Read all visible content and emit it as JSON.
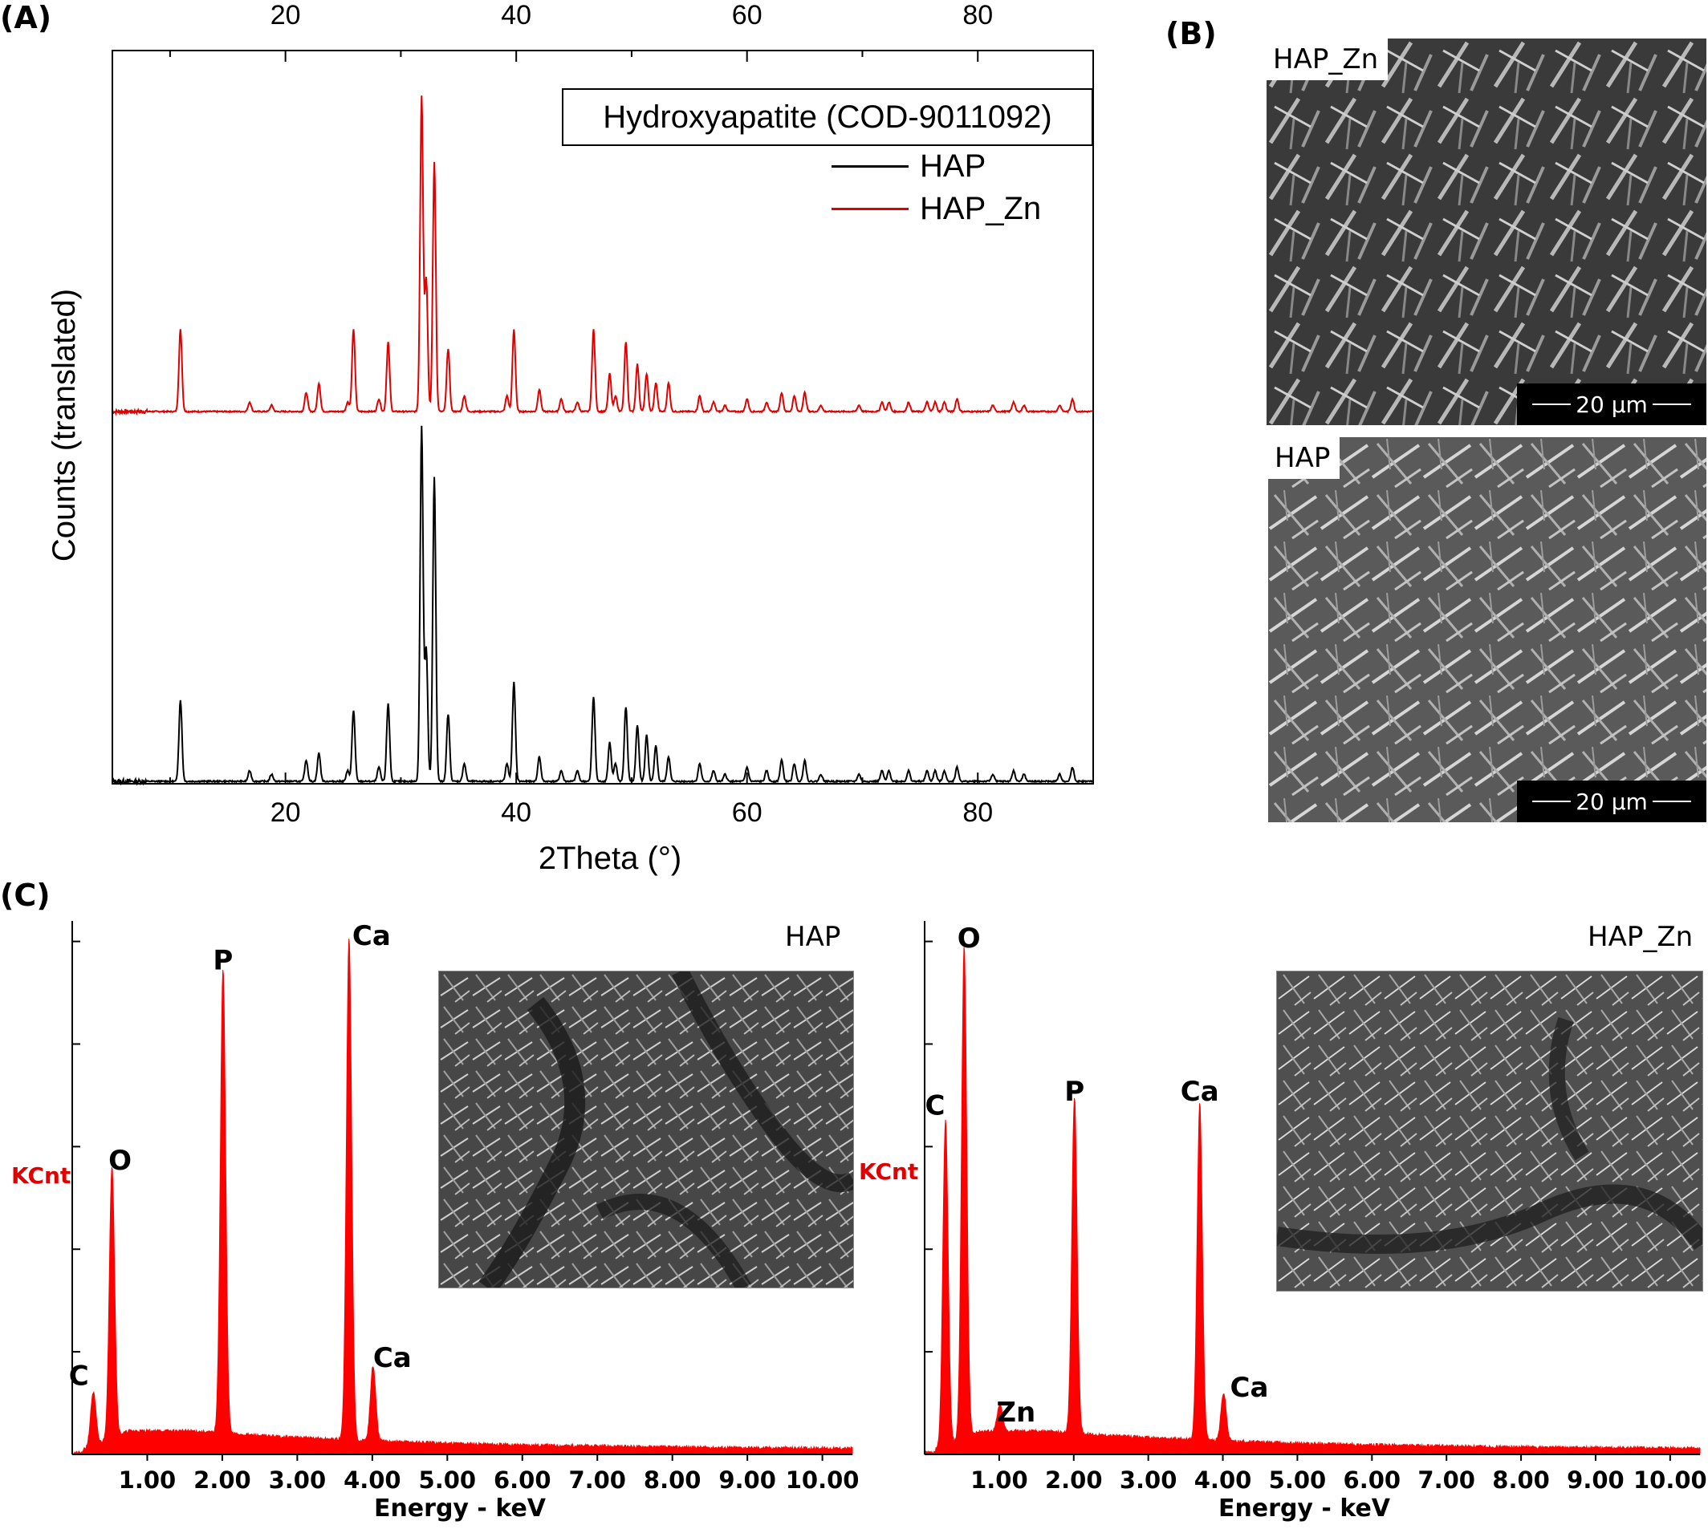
{
  "panel_labels": {
    "a": "(A)",
    "b": "(B)",
    "c": "(C)"
  },
  "colors": {
    "hap": "#000000",
    "hap_zn": "#e00000",
    "eds": "#ff0000",
    "axis": "#000000"
  },
  "xrd": {
    "legend_title": "Hydroxyapatite (COD-9011092)",
    "legend_items": [
      {
        "name": "HAP",
        "color": "#000000"
      },
      {
        "name": "HAP_Zn",
        "color": "#e00000"
      }
    ]
  },
  "sem": {
    "top_label": "HAP_Zn",
    "bottom_label": "HAP",
    "scale_text": "20 μm"
  },
  "eds_insets": {
    "left_label": "HAP",
    "right_label": "HAP_Zn"
  },
  "chart_data": [
    {
      "type": "line",
      "panel": "(A)",
      "xlabel": "2Theta (°)",
      "ylabel": "Counts (translated)",
      "xlim": [
        5,
        90
      ],
      "x_ticks": [
        20,
        40,
        60,
        80
      ],
      "legend_placement": "top-right",
      "series": [
        {
          "name": "HAP_Zn",
          "peaks": [
            [
              10.9,
              0.26
            ],
            [
              16.9,
              0.03
            ],
            [
              18.8,
              0.02
            ],
            [
              21.8,
              0.06
            ],
            [
              22.9,
              0.09
            ],
            [
              25.4,
              0.03
            ],
            [
              25.9,
              0.26
            ],
            [
              28.1,
              0.04
            ],
            [
              28.9,
              0.22
            ],
            [
              31.8,
              1.0
            ],
            [
              32.2,
              0.42
            ],
            [
              32.9,
              0.79
            ],
            [
              34.1,
              0.2
            ],
            [
              35.5,
              0.05
            ],
            [
              39.2,
              0.05
            ],
            [
              39.8,
              0.26
            ],
            [
              42.0,
              0.07
            ],
            [
              43.9,
              0.04
            ],
            [
              45.3,
              0.03
            ],
            [
              46.7,
              0.26
            ],
            [
              48.1,
              0.12
            ],
            [
              48.6,
              0.05
            ],
            [
              49.5,
              0.22
            ],
            [
              50.5,
              0.15
            ],
            [
              51.3,
              0.12
            ],
            [
              52.1,
              0.09
            ],
            [
              53.2,
              0.09
            ],
            [
              55.9,
              0.05
            ],
            [
              57.1,
              0.03
            ],
            [
              58.1,
              0.02
            ],
            [
              60.0,
              0.04
            ],
            [
              61.7,
              0.03
            ],
            [
              63.0,
              0.06
            ],
            [
              64.1,
              0.05
            ],
            [
              65.0,
              0.06
            ],
            [
              66.4,
              0.02
            ],
            [
              69.7,
              0.02
            ],
            [
              71.7,
              0.03
            ],
            [
              72.3,
              0.03
            ],
            [
              74.0,
              0.03
            ],
            [
              75.6,
              0.03
            ],
            [
              76.3,
              0.03
            ],
            [
              77.1,
              0.03
            ],
            [
              78.2,
              0.04
            ],
            [
              81.3,
              0.02
            ],
            [
              83.1,
              0.03
            ],
            [
              84.0,
              0.02
            ],
            [
              87.1,
              0.02
            ],
            [
              88.2,
              0.04
            ]
          ]
        },
        {
          "name": "HAP",
          "peaks": [
            [
              10.9,
              0.23
            ],
            [
              16.9,
              0.03
            ],
            [
              18.8,
              0.02
            ],
            [
              21.8,
              0.06
            ],
            [
              22.9,
              0.08
            ],
            [
              25.4,
              0.03
            ],
            [
              25.9,
              0.2
            ],
            [
              28.1,
              0.04
            ],
            [
              28.9,
              0.22
            ],
            [
              31.8,
              1.0
            ],
            [
              32.2,
              0.37
            ],
            [
              32.9,
              0.86
            ],
            [
              34.1,
              0.19
            ],
            [
              35.5,
              0.05
            ],
            [
              39.2,
              0.05
            ],
            [
              39.8,
              0.28
            ],
            [
              42.0,
              0.07
            ],
            [
              43.9,
              0.03
            ],
            [
              45.3,
              0.03
            ],
            [
              46.7,
              0.24
            ],
            [
              48.1,
              0.11
            ],
            [
              48.6,
              0.05
            ],
            [
              49.5,
              0.21
            ],
            [
              50.5,
              0.16
            ],
            [
              51.3,
              0.13
            ],
            [
              52.1,
              0.1
            ],
            [
              53.2,
              0.07
            ],
            [
              55.9,
              0.05
            ],
            [
              57.1,
              0.03
            ],
            [
              58.1,
              0.02
            ],
            [
              60.0,
              0.04
            ],
            [
              61.7,
              0.03
            ],
            [
              63.0,
              0.06
            ],
            [
              64.1,
              0.05
            ],
            [
              65.0,
              0.06
            ],
            [
              66.4,
              0.02
            ],
            [
              69.7,
              0.02
            ],
            [
              71.7,
              0.03
            ],
            [
              72.3,
              0.03
            ],
            [
              74.0,
              0.03
            ],
            [
              75.6,
              0.03
            ],
            [
              76.3,
              0.03
            ],
            [
              77.1,
              0.03
            ],
            [
              78.2,
              0.04
            ],
            [
              81.3,
              0.02
            ],
            [
              83.1,
              0.03
            ],
            [
              84.0,
              0.02
            ],
            [
              87.1,
              0.02
            ],
            [
              88.2,
              0.04
            ]
          ]
        }
      ]
    },
    {
      "type": "area",
      "panel": "(C) left",
      "xlabel": "Energy - keV",
      "ylabel": "KCnt",
      "xlim": [
        0.0,
        10.4
      ],
      "x_ticks": [
        "1.00",
        "2.00",
        "3.00",
        "4.00",
        "5.00",
        "6.00",
        "7.00",
        "8.00",
        "9.00",
        "10.00"
      ],
      "ylim": [
        0,
        1.0
      ],
      "peaks": [
        {
          "label": "C",
          "x": 0.28,
          "y": 0.1
        },
        {
          "label": "O",
          "x": 0.53,
          "y": 0.51
        },
        {
          "label": "P",
          "x": 2.01,
          "y": 0.87
        },
        {
          "label": "Ca",
          "x": 3.69,
          "y": 0.94
        },
        {
          "label": "Ca",
          "x": 4.01,
          "y": 0.14
        }
      ]
    },
    {
      "type": "area",
      "panel": "(C) right",
      "xlabel": "Energy - keV",
      "ylabel": "KCnt",
      "xlim": [
        0.0,
        10.4
      ],
      "x_ticks": [
        "1.00",
        "2.00",
        "3.00",
        "4.00",
        "5.00",
        "6.00",
        "7.00",
        "8.00",
        "9.00",
        "10.00"
      ],
      "ylim": [
        0,
        1.0
      ],
      "peaks": [
        {
          "label": "C",
          "x": 0.28,
          "y": 0.61
        },
        {
          "label": "O",
          "x": 0.53,
          "y": 0.92
        },
        {
          "label": "Zn",
          "x": 1.01,
          "y": 0.05
        },
        {
          "label": "P",
          "x": 2.01,
          "y": 0.63
        },
        {
          "label": "Ca",
          "x": 3.69,
          "y": 0.63
        },
        {
          "label": "Ca",
          "x": 4.01,
          "y": 0.09
        }
      ]
    }
  ]
}
